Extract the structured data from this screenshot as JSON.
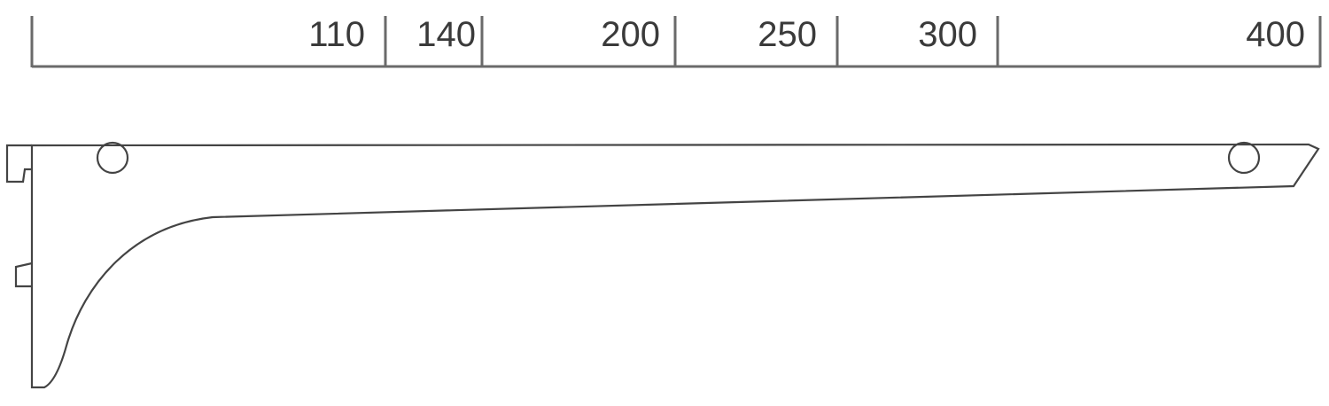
{
  "scale": {
    "labels": [
      "110",
      "140",
      "200",
      "250",
      "300",
      "400"
    ]
  },
  "colors": {
    "line": "#555555",
    "outline": "#333333"
  }
}
